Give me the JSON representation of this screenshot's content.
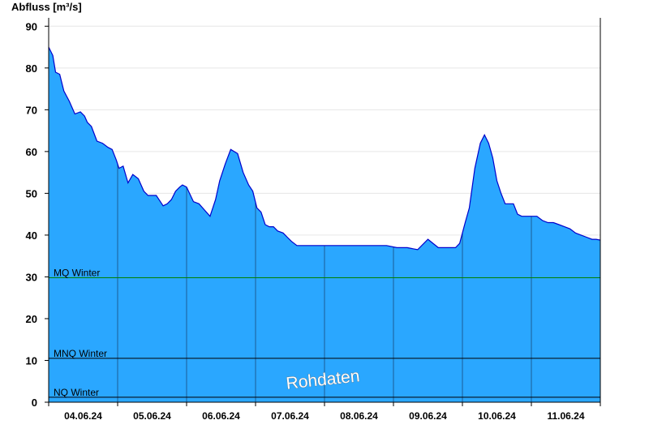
{
  "chart_data": {
    "type": "area",
    "ylabel": "Abfluss [m³/s]",
    "ylim": [
      0,
      92
    ],
    "yticks": [
      0,
      10,
      20,
      30,
      40,
      50,
      60,
      70,
      80,
      90
    ],
    "xlim": [
      0,
      8
    ],
    "xtick_labels": [
      "04.06.24",
      "05.06.24",
      "06.06.24",
      "07.06.24",
      "08.06.24",
      "09.06.24",
      "10.06.24",
      "11.06.24"
    ],
    "grid": true,
    "fill_color": "#2aa7ff",
    "line_color": "#0000cc",
    "series": [
      {
        "x": [
          0,
          0.06,
          0.1,
          0.16,
          0.22,
          0.3,
          0.38,
          0.46,
          0.52,
          0.56,
          0.62,
          0.7,
          0.78,
          0.86,
          0.92,
          0.98,
          1.02,
          1.08,
          1.15,
          1.22,
          1.3,
          1.38,
          1.44,
          1.5,
          1.56,
          1.62,
          1.66,
          1.72,
          1.78,
          1.84,
          1.9,
          1.94,
          2.0,
          2.1,
          2.18,
          2.26,
          2.34,
          2.42,
          2.48,
          2.56,
          2.64,
          2.74,
          2.82,
          2.9,
          2.96,
          3.02,
          3.08,
          3.14,
          3.2,
          3.26,
          3.32,
          3.4,
          3.46,
          3.52,
          3.6,
          3.68,
          3.76,
          3.84,
          3.92,
          4.0,
          4.1,
          4.2,
          4.3,
          4.45,
          4.6,
          4.75,
          4.9,
          5.05,
          5.2,
          5.35,
          5.5,
          5.65,
          5.8,
          5.9,
          5.96,
          6.0,
          6.04,
          6.1,
          6.18,
          6.26,
          6.32,
          6.38,
          6.44,
          6.5,
          6.56,
          6.62,
          6.68,
          6.74,
          6.8,
          6.86,
          6.92,
          7.0,
          7.08,
          7.16,
          7.24,
          7.32,
          7.4,
          7.48,
          7.56,
          7.64,
          7.72,
          7.8,
          7.88,
          7.94,
          8.0
        ],
        "y": [
          85,
          83,
          79,
          78.5,
          74.5,
          72,
          69,
          69.5,
          68.5,
          67,
          66,
          62.5,
          62,
          61,
          60.5,
          58,
          56,
          56.5,
          52.5,
          54.5,
          53.5,
          50.5,
          49.5,
          49.5,
          49.5,
          48,
          47,
          47.5,
          48.5,
          50.5,
          51.5,
          52,
          51.5,
          48,
          47.5,
          46,
          44.5,
          48.5,
          53,
          57,
          60.5,
          59.5,
          55,
          52,
          50.5,
          46.5,
          45.5,
          42.5,
          42,
          42,
          41,
          40.5,
          39.5,
          38.5,
          37.5,
          37.5,
          37.5,
          37.5,
          37.5,
          37.5,
          37.5,
          37.5,
          37.5,
          37.5,
          37.5,
          37.5,
          37.5,
          37,
          37,
          36.5,
          39,
          37,
          37,
          37,
          38,
          40.5,
          43,
          46.5,
          56,
          62,
          64,
          62,
          58.5,
          53,
          50,
          47.5,
          47.5,
          47.5,
          45,
          44.5,
          44.5,
          44.5,
          44.5,
          43.5,
          43,
          43,
          42.5,
          42,
          41.5,
          40.5,
          40,
          39.5,
          39,
          39,
          38.8
        ]
      }
    ],
    "reference_lines": [
      {
        "label": "MQ Winter",
        "value": 29.8,
        "color": "#008000"
      },
      {
        "label": "MNQ Winter",
        "value": 10.5,
        "color": "#000000"
      },
      {
        "label": "NQ Winter",
        "value": 1.2,
        "color": "#000000"
      }
    ],
    "watermark": "Rohdaten"
  }
}
